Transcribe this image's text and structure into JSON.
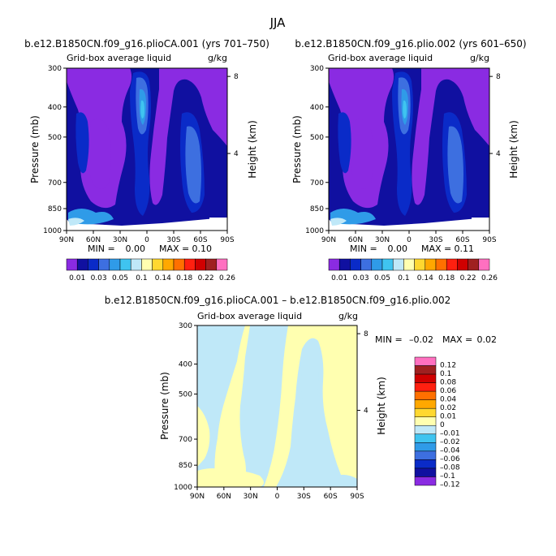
{
  "figure": {
    "title": "JJA"
  },
  "palette": {
    "abs_colors": [
      "#8a2be2",
      "#1010a0",
      "#0a2bc8",
      "#3d6fe0",
      "#2f9be8",
      "#3fc4f0",
      "#bfe8f8",
      "#ffffb0",
      "#ffd830",
      "#ffa800",
      "#ff7000",
      "#ff2010",
      "#d00000",
      "#a02020",
      "#ff70c0"
    ],
    "diff_colors": [
      "#ff70c0",
      "#a02020",
      "#d00000",
      "#ff2010",
      "#ff7000",
      "#ffa800",
      "#ffd830",
      "#ffffb0",
      "#bfe8f8",
      "#3fc4f0",
      "#2f9be8",
      "#3d6fe0",
      "#0a2bc8",
      "#1010a0",
      "#8a2be2"
    ]
  },
  "chart_data": [
    {
      "type": "heatmap",
      "title": "b.e12.B1850CN.f09_g16.plioCA.001 (yrs 701–750)",
      "subtitle_left": "Grid-box average liquid",
      "subtitle_right": "g/kg",
      "xlabel": "",
      "ylabel": "Pressure (mb)",
      "ylabel_right": "Height (km)",
      "x_ticks": [
        "90N",
        "60N",
        "30N",
        "0",
        "30S",
        "60S",
        "90S"
      ],
      "y_ticks": [
        "300",
        "400",
        "500",
        "700",
        "850",
        "1000"
      ],
      "y_ticks_right": [
        "8",
        "4"
      ],
      "min_text": "MIN =",
      "min_value": "0.00",
      "max_text": "MAX =",
      "max_value": "0.10",
      "colorbar_labels": [
        "0.01",
        "0.03",
        "0.05",
        "0.1",
        "0.14",
        "0.18",
        "0.22",
        "0.26"
      ],
      "colorbar_levels": [
        0.01,
        0.02,
        0.03,
        0.04,
        0.05,
        0.06,
        0.1,
        0.12,
        0.14,
        0.16,
        0.18,
        0.2,
        0.22,
        0.24,
        0.26
      ]
    },
    {
      "type": "heatmap",
      "title": "b.e12.B1850CN.f09_g16.plio.002 (yrs 601–650)",
      "subtitle_left": "Grid-box average liquid",
      "subtitle_right": "g/kg",
      "xlabel": "",
      "ylabel": "Pressure (mb)",
      "ylabel_right": "Height (km)",
      "x_ticks": [
        "90N",
        "60N",
        "30N",
        "0",
        "30S",
        "60S",
        "90S"
      ],
      "y_ticks": [
        "300",
        "400",
        "500",
        "700",
        "850",
        "1000"
      ],
      "y_ticks_right": [
        "8",
        "4"
      ],
      "min_text": "MIN =",
      "min_value": "0.00",
      "max_text": "MAX =",
      "max_value": "0.11",
      "colorbar_labels": [
        "0.01",
        "0.03",
        "0.05",
        "0.1",
        "0.14",
        "0.18",
        "0.22",
        "0.26"
      ],
      "colorbar_levels": [
        0.01,
        0.02,
        0.03,
        0.04,
        0.05,
        0.06,
        0.1,
        0.12,
        0.14,
        0.16,
        0.18,
        0.2,
        0.22,
        0.24,
        0.26
      ]
    },
    {
      "type": "heatmap",
      "title": "b.e12.B1850CN.f09_g16.plioCA.001 – b.e12.B1850CN.f09_g16.plio.002",
      "subtitle_left": "Grid-box average liquid",
      "subtitle_right": "g/kg",
      "xlabel": "",
      "ylabel": "Pressure (mb)",
      "ylabel_right": "Height (km)",
      "x_ticks": [
        "90N",
        "60N",
        "30N",
        "0",
        "30S",
        "60S",
        "90S"
      ],
      "y_ticks": [
        "300",
        "400",
        "500",
        "700",
        "850",
        "1000"
      ],
      "y_ticks_right": [
        "8",
        "4"
      ],
      "min_text": "MIN =",
      "min_value": "–0.02",
      "max_text": "MAX =",
      "max_value": "0.02",
      "colorbar_labels": [
        "0.12",
        "0.1",
        "0.08",
        "0.06",
        "0.04",
        "0.02",
        "0.01",
        "0",
        "–0.01",
        "–0.02",
        "–0.04",
        "–0.06",
        "–0.08",
        "–0.1",
        "–0.12"
      ],
      "colorbar_levels": [
        0.12,
        0.1,
        0.08,
        0.06,
        0.04,
        0.02,
        0.01,
        0,
        -0.01,
        -0.02,
        -0.04,
        -0.06,
        -0.08,
        -0.1,
        -0.12
      ]
    }
  ]
}
